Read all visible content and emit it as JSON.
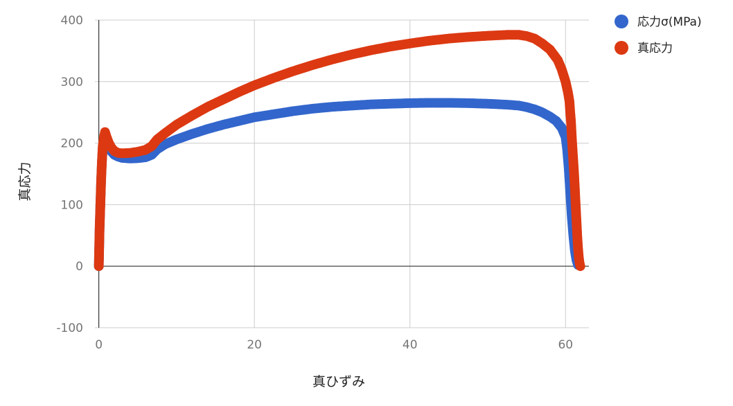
{
  "chart_data": {
    "type": "scatter",
    "xlabel": "真ひずみ",
    "ylabel": "真応力",
    "xlim": [
      -0.5,
      63
    ],
    "ylim": [
      -100,
      400
    ],
    "x_ticks": [
      "0",
      "20",
      "40",
      "60"
    ],
    "y_ticks": [
      "-100",
      "0",
      "100",
      "200",
      "300",
      "400"
    ],
    "grid": true,
    "legend_position": "right",
    "series": [
      {
        "name": "応力σ(MPa)",
        "color": "#3366cc",
        "points": [
          [
            0,
            0
          ],
          [
            0.05,
            30
          ],
          [
            0.1,
            60
          ],
          [
            0.2,
            100
          ],
          [
            0.3,
            140
          ],
          [
            0.4,
            170
          ],
          [
            0.5,
            190
          ],
          [
            0.7,
            200
          ],
          [
            1.0,
            196
          ],
          [
            1.5,
            188
          ],
          [
            2,
            181
          ],
          [
            2.5,
            178
          ],
          [
            3,
            176
          ],
          [
            4,
            175
          ],
          [
            5,
            175.5
          ],
          [
            6,
            177
          ],
          [
            6.8,
            181
          ],
          [
            7.5,
            190
          ],
          [
            8.5,
            198
          ],
          [
            10,
            206
          ],
          [
            12,
            215
          ],
          [
            14,
            223
          ],
          [
            16,
            230
          ],
          [
            18,
            236
          ],
          [
            20,
            242
          ],
          [
            22.5,
            247
          ],
          [
            25,
            252
          ],
          [
            27.5,
            256
          ],
          [
            30,
            259
          ],
          [
            32.5,
            261
          ],
          [
            35,
            263
          ],
          [
            37.5,
            264
          ],
          [
            40,
            265
          ],
          [
            42.5,
            265.5
          ],
          [
            45,
            265.5
          ],
          [
            47.5,
            265
          ],
          [
            50,
            264
          ],
          [
            52.5,
            262.5
          ],
          [
            54,
            261
          ],
          [
            55,
            258.5
          ],
          [
            56,
            255
          ],
          [
            57,
            250
          ],
          [
            58,
            243
          ],
          [
            58.8,
            236
          ],
          [
            59.5,
            225
          ],
          [
            60,
            210
          ],
          [
            60.2,
            190
          ],
          [
            60.4,
            160
          ],
          [
            60.6,
            120
          ],
          [
            60.8,
            80
          ],
          [
            61,
            50
          ],
          [
            61.2,
            25
          ],
          [
            61.4,
            10
          ],
          [
            61.6,
            2
          ]
        ]
      },
      {
        "name": "真応力",
        "color": "#dc3912",
        "points": [
          [
            0,
            0
          ],
          [
            0.05,
            30
          ],
          [
            0.1,
            60
          ],
          [
            0.2,
            100
          ],
          [
            0.3,
            140
          ],
          [
            0.4,
            170
          ],
          [
            0.5,
            195
          ],
          [
            0.7,
            212
          ],
          [
            0.8,
            218
          ],
          [
            1.0,
            210
          ],
          [
            1.3,
            200
          ],
          [
            1.6,
            193
          ],
          [
            2,
            187
          ],
          [
            2.5,
            184
          ],
          [
            3,
            183.5
          ],
          [
            4,
            184
          ],
          [
            5,
            186
          ],
          [
            6,
            189
          ],
          [
            6.8,
            195
          ],
          [
            7.5,
            206
          ],
          [
            8.5,
            216
          ],
          [
            10,
            230
          ],
          [
            12,
            245
          ],
          [
            14,
            259
          ],
          [
            16,
            271
          ],
          [
            18,
            283
          ],
          [
            20,
            294
          ],
          [
            22.5,
            306
          ],
          [
            25,
            317
          ],
          [
            27.5,
            327
          ],
          [
            30,
            336
          ],
          [
            32.5,
            344
          ],
          [
            35,
            351
          ],
          [
            37.5,
            357
          ],
          [
            40,
            362
          ],
          [
            42.5,
            366.5
          ],
          [
            45,
            370
          ],
          [
            47.5,
            372.5
          ],
          [
            50,
            374.5
          ],
          [
            52.5,
            376
          ],
          [
            54,
            376
          ],
          [
            55,
            374
          ],
          [
            56,
            370
          ],
          [
            57,
            362
          ],
          [
            58,
            352
          ],
          [
            59,
            335
          ],
          [
            59.5,
            320
          ],
          [
            60,
            300
          ],
          [
            60.3,
            283
          ],
          [
            60.5,
            268
          ],
          [
            60.6,
            250
          ],
          [
            60.7,
            235
          ],
          [
            60.8,
            210
          ],
          [
            60.9,
            190
          ],
          [
            61,
            170
          ],
          [
            61.1,
            150
          ],
          [
            61.2,
            125
          ],
          [
            61.3,
            100
          ],
          [
            61.4,
            75
          ],
          [
            61.5,
            50
          ],
          [
            61.6,
            30
          ],
          [
            61.7,
            15
          ],
          [
            61.8,
            5
          ],
          [
            61.9,
            0
          ]
        ]
      }
    ]
  }
}
